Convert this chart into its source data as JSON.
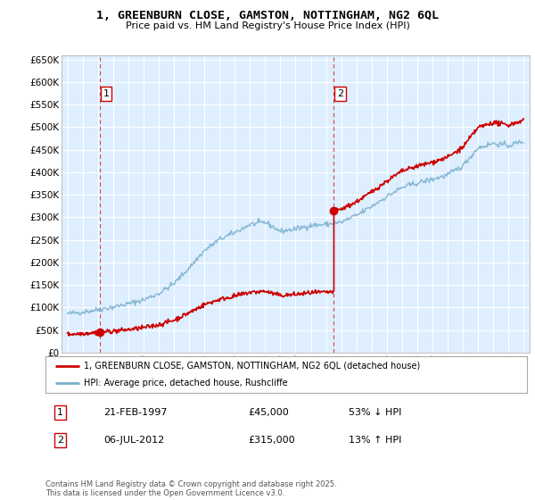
{
  "title_line1": "1, GREENBURN CLOSE, GAMSTON, NOTTINGHAM, NG2 6QL",
  "title_line2": "Price paid vs. HM Land Registry's House Price Index (HPI)",
  "legend_label_red": "1, GREENBURN CLOSE, GAMSTON, NOTTINGHAM, NG2 6QL (detached house)",
  "legend_label_blue": "HPI: Average price, detached house, Rushcliffe",
  "annotation1_date": "21-FEB-1997",
  "annotation1_price": "£45,000",
  "annotation1_hpi": "53% ↓ HPI",
  "annotation2_date": "06-JUL-2012",
  "annotation2_price": "£315,000",
  "annotation2_hpi": "13% ↑ HPI",
  "footer": "Contains HM Land Registry data © Crown copyright and database right 2025.\nThis data is licensed under the Open Government Licence v3.0.",
  "red_color": "#cc0000",
  "blue_color": "#7aafcc",
  "plot_bg_color": "#ddeeff",
  "grid_color": "#ffffff",
  "ylim": [
    0,
    660000
  ],
  "ytick_step": 50000,
  "year_start": 1995,
  "year_end": 2025,
  "marker1_year": 1997.13,
  "marker1_price": 45000,
  "marker2_year": 2012.52,
  "marker2_price": 315000
}
